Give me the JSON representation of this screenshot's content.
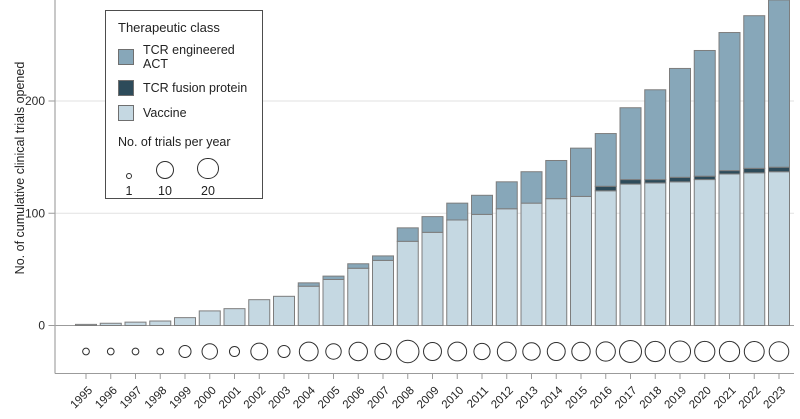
{
  "figure": {
    "ylabel": "No. of cumulative clinical trials opened"
  },
  "chart_data": {
    "type": "bar",
    "stacked": true,
    "title": "",
    "xlabel": "",
    "ylabel": "No. of cumulative clinical trials opened",
    "ylim": [
      0,
      290
    ],
    "yticks": [
      0,
      100,
      200
    ],
    "grid": "horizontal-light",
    "legend_position": "top-left-inside",
    "categories": [
      1995,
      1996,
      1997,
      1998,
      1999,
      2000,
      2001,
      2002,
      2003,
      2004,
      2005,
      2006,
      2007,
      2008,
      2009,
      2010,
      2011,
      2012,
      2013,
      2014,
      2015,
      2016,
      2017,
      2018,
      2019,
      2020,
      2021,
      2022,
      2023
    ],
    "series": [
      {
        "name": "Vaccine",
        "color": "#c5d8e2",
        "values": [
          1,
          2,
          3,
          4,
          7,
          13,
          15,
          23,
          26,
          35,
          41,
          51,
          58,
          75,
          83,
          94,
          99,
          104,
          109,
          113,
          115,
          120,
          126,
          127,
          128,
          130,
          135,
          136,
          137
        ]
      },
      {
        "name": "TCR fusion protein",
        "color": "#2d4b5a",
        "values": [
          0,
          0,
          0,
          0,
          0,
          0,
          0,
          0,
          0,
          0,
          0,
          0,
          0,
          0,
          0,
          0,
          0,
          0,
          0,
          0,
          0,
          4,
          4,
          3,
          4,
          3,
          3,
          4,
          4
        ]
      },
      {
        "name": "TCR engineered ACT",
        "color": "#87a7b9",
        "values": [
          0,
          0,
          0,
          0,
          0,
          0,
          0,
          0,
          0,
          3,
          3,
          4,
          4,
          12,
          14,
          15,
          17,
          24,
          28,
          34,
          43,
          47,
          64,
          80,
          97,
          112,
          123,
          136,
          149
        ]
      }
    ],
    "bubbles": {
      "label": "No. of trials per year",
      "values": [
        1,
        1,
        1,
        1,
        3,
        6,
        2,
        8,
        3,
        12,
        6,
        11,
        7,
        25,
        10,
        12,
        7,
        12,
        9,
        10,
        11,
        13,
        23,
        16,
        19,
        16,
        16,
        15,
        14
      ],
      "legend_sizes": [
        1,
        10,
        20
      ]
    },
    "legend": {
      "title": "Therapeutic class"
    }
  }
}
